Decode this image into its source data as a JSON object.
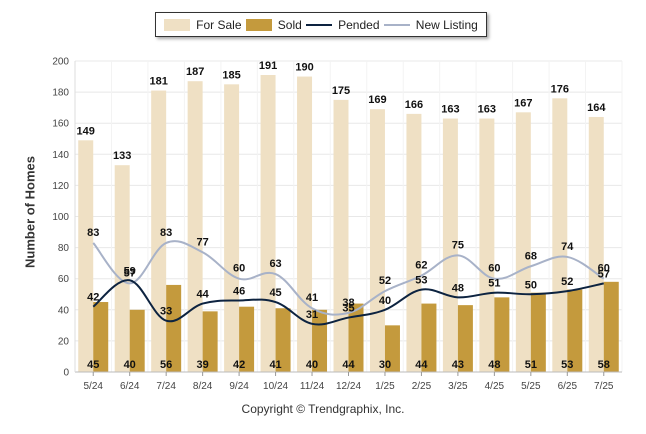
{
  "legend": {
    "for_sale": "For Sale",
    "sold": "Sold",
    "pended": "Pended",
    "new_listing": "New Listing"
  },
  "copyright": "Copyright © Trendgraphix, Inc.",
  "colors": {
    "for_sale": "#efe0c4",
    "sold": "#c49a3d",
    "pended": "#0d2340",
    "new_listing": "#a8b2c8"
  },
  "chart_data": {
    "type": "bar",
    "ylabel": "Number of Homes",
    "ylim": [
      0,
      200
    ],
    "yticks": [
      0,
      20,
      40,
      60,
      80,
      100,
      120,
      140,
      160,
      180,
      200
    ],
    "grid": true,
    "legend_position": "top",
    "categories": [
      "5/24",
      "6/24",
      "7/24",
      "8/24",
      "9/24",
      "10/24",
      "11/24",
      "12/24",
      "1/25",
      "2/25",
      "3/25",
      "4/25",
      "5/25",
      "6/25",
      "7/25"
    ],
    "series": [
      {
        "name": "For Sale",
        "kind": "bar",
        "values": [
          149,
          133,
          181,
          187,
          185,
          191,
          190,
          175,
          169,
          166,
          163,
          163,
          167,
          176,
          164
        ]
      },
      {
        "name": "Sold",
        "kind": "bar",
        "values": [
          45,
          40,
          56,
          39,
          42,
          41,
          40,
          44,
          30,
          44,
          43,
          48,
          51,
          53,
          58
        ]
      },
      {
        "name": "Pended",
        "kind": "line",
        "values": [
          42,
          59,
          33,
          44,
          46,
          45,
          31,
          35,
          40,
          53,
          48,
          51,
          50,
          52,
          57
        ]
      },
      {
        "name": "New Listing",
        "kind": "line",
        "values": [
          83,
          57,
          83,
          77,
          60,
          63,
          41,
          38,
          52,
          62,
          75,
          60,
          68,
          74,
          60
        ]
      }
    ]
  }
}
